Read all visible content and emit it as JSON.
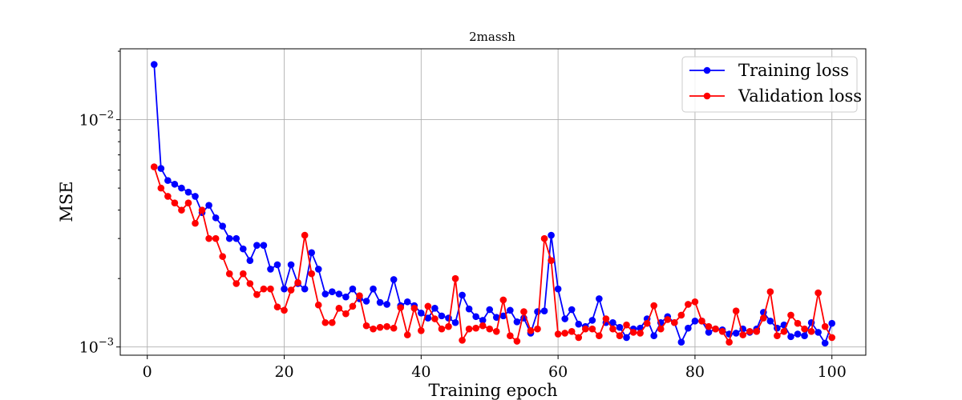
{
  "chart_data": {
    "type": "line",
    "title": "2massh",
    "xlabel": "Training epoch",
    "ylabel": "MSE",
    "xlim": [
      -3.95,
      104.95
    ],
    "ylim": [
      0.00092,
      0.0205
    ],
    "yscale": "log",
    "grid": true,
    "legend_position": "top-right",
    "x_ticks": [
      0,
      20,
      40,
      60,
      80,
      100
    ],
    "y_ticks": [
      {
        "value": 0.001,
        "base": "10",
        "exp": "−3"
      },
      {
        "value": 0.01,
        "base": "10",
        "exp": "−2"
      }
    ],
    "x": [
      1,
      2,
      3,
      4,
      5,
      6,
      7,
      8,
      9,
      10,
      11,
      12,
      13,
      14,
      15,
      16,
      17,
      18,
      19,
      20,
      21,
      22,
      23,
      24,
      25,
      26,
      27,
      28,
      29,
      30,
      31,
      32,
      33,
      34,
      35,
      36,
      37,
      38,
      39,
      40,
      41,
      42,
      43,
      44,
      45,
      46,
      47,
      48,
      49,
      50,
      51,
      52,
      53,
      54,
      55,
      56,
      57,
      58,
      59,
      60,
      61,
      62,
      63,
      64,
      65,
      66,
      67,
      68,
      69,
      70,
      71,
      72,
      73,
      74,
      75,
      76,
      77,
      78,
      79,
      80,
      81,
      82,
      83,
      84,
      85,
      86,
      87,
      88,
      89,
      90,
      91,
      92,
      93,
      94,
      95,
      96,
      97,
      98,
      99,
      100
    ],
    "series": [
      {
        "name": "Training loss",
        "color": "#0000ff",
        "values": [
          0.0175,
          0.0061,
          0.0054,
          0.0052,
          0.005,
          0.0048,
          0.0046,
          0.0039,
          0.0042,
          0.0037,
          0.0034,
          0.003,
          0.003,
          0.0027,
          0.0024,
          0.0028,
          0.0028,
          0.0022,
          0.0023,
          0.0018,
          0.0023,
          0.0019,
          0.0018,
          0.0026,
          0.0022,
          0.00171,
          0.00175,
          0.00171,
          0.00166,
          0.0018,
          0.00163,
          0.00159,
          0.0018,
          0.00157,
          0.00154,
          0.00198,
          0.00152,
          0.00158,
          0.00152,
          0.00141,
          0.00134,
          0.00148,
          0.00137,
          0.00134,
          0.00128,
          0.00169,
          0.00147,
          0.00136,
          0.00131,
          0.00146,
          0.00135,
          0.00137,
          0.00145,
          0.00129,
          0.00134,
          0.00115,
          0.00143,
          0.00144,
          0.0031,
          0.0018,
          0.00133,
          0.00146,
          0.00126,
          0.00123,
          0.00131,
          0.00163,
          0.00128,
          0.00128,
          0.00122,
          0.0011,
          0.0012,
          0.00121,
          0.00133,
          0.00112,
          0.00128,
          0.00136,
          0.00128,
          0.00105,
          0.00121,
          0.0013,
          0.0013,
          0.00116,
          0.0012,
          0.00119,
          0.00114,
          0.00115,
          0.0012,
          0.00116,
          0.0012,
          0.00142,
          0.0013,
          0.00121,
          0.00125,
          0.00111,
          0.00114,
          0.00112,
          0.00128,
          0.00116,
          0.00104,
          0.00127
        ]
      },
      {
        "name": "Validation loss",
        "color": "#ff0000",
        "values": [
          0.0062,
          0.005,
          0.0046,
          0.0043,
          0.004,
          0.0043,
          0.0035,
          0.004,
          0.003,
          0.003,
          0.0025,
          0.0021,
          0.0019,
          0.0021,
          0.0019,
          0.0017,
          0.0018,
          0.0018,
          0.0015,
          0.00145,
          0.00178,
          0.00192,
          0.0031,
          0.0021,
          0.00153,
          0.00128,
          0.00128,
          0.00148,
          0.0014,
          0.00151,
          0.00168,
          0.00124,
          0.0012,
          0.00122,
          0.00123,
          0.00121,
          0.00149,
          0.00113,
          0.00148,
          0.00118,
          0.00151,
          0.00133,
          0.0012,
          0.00123,
          0.002,
          0.00107,
          0.0012,
          0.00121,
          0.00124,
          0.0012,
          0.00117,
          0.00161,
          0.00112,
          0.00106,
          0.00143,
          0.00118,
          0.0012,
          0.003,
          0.0024,
          0.00114,
          0.00115,
          0.00117,
          0.0011,
          0.0012,
          0.0012,
          0.00112,
          0.00133,
          0.0012,
          0.00112,
          0.00125,
          0.00116,
          0.00115,
          0.00127,
          0.00152,
          0.0012,
          0.00132,
          0.00128,
          0.00138,
          0.00154,
          0.00158,
          0.0013,
          0.00123,
          0.0012,
          0.00117,
          0.00105,
          0.00144,
          0.00113,
          0.00117,
          0.00117,
          0.00134,
          0.00175,
          0.00112,
          0.00117,
          0.00138,
          0.00127,
          0.0012,
          0.00117,
          0.00173,
          0.00123,
          0.0011
        ]
      }
    ]
  }
}
